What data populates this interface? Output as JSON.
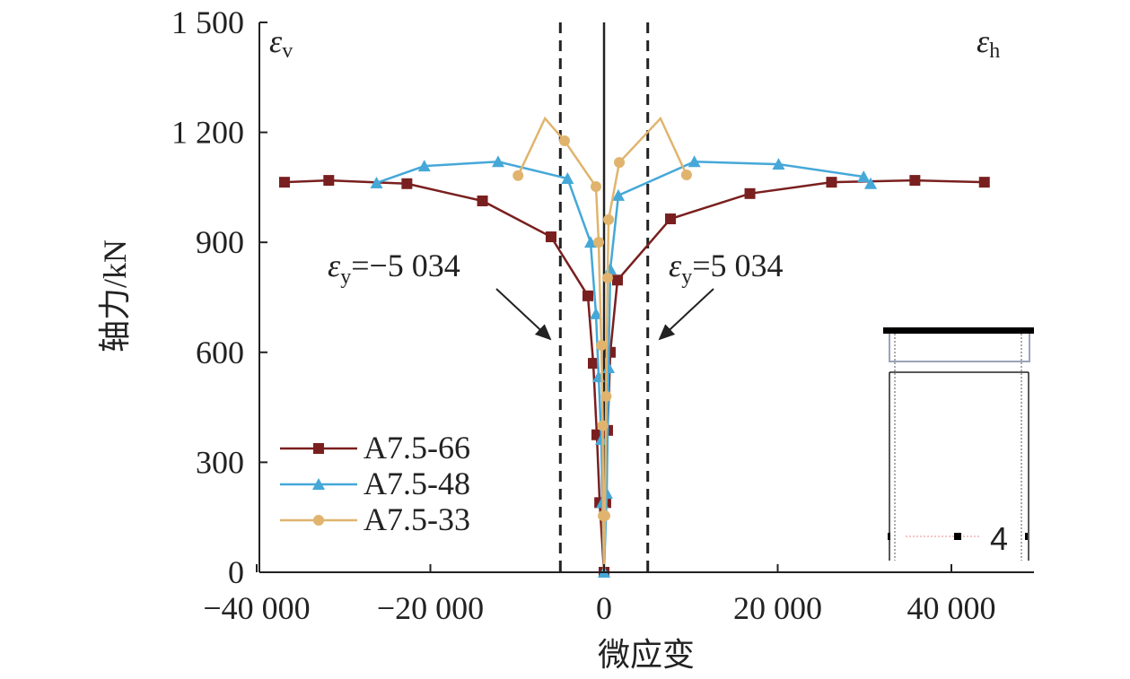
{
  "chart_data": {
    "type": "line",
    "xlabel": "微应变",
    "ylabel": "轴力/kN",
    "xlim": [
      -40000,
      50000
    ],
    "ylim": [
      0,
      1500
    ],
    "xticks": [
      {
        "v": -40000,
        "label": "−40 000"
      },
      {
        "v": -20000,
        "label": "−20 000"
      },
      {
        "v": 0,
        "label": "0"
      },
      {
        "v": 20000,
        "label": "20 000"
      },
      {
        "v": 40000,
        "label": "40 000"
      }
    ],
    "yticks": [
      {
        "v": 0,
        "label": "0"
      },
      {
        "v": 300,
        "label": "300"
      },
      {
        "v": 600,
        "label": "600"
      },
      {
        "v": 900,
        "label": "900"
      },
      {
        "v": 1200,
        "label": "1 200"
      },
      {
        "v": 1500,
        "label": "1 500"
      }
    ],
    "annotations": {
      "left_region": "ε",
      "left_sub": "v",
      "right_region": "ε",
      "right_sub": "h",
      "yield_neg_prefix": "ε",
      "yield_neg_sub": "y",
      "yield_neg_text": "=−5 034",
      "yield_pos_prefix": "ε",
      "yield_pos_sub": "y",
      "yield_pos_text": "=5 034",
      "yield_values": [
        -5034,
        5034
      ],
      "inset_label": "4"
    },
    "series": [
      {
        "name": "A7.5-66",
        "color": "#7a1f1f",
        "marker": "square",
        "points": [
          [
            -36800,
            1064
          ],
          [
            -31700,
            1069
          ],
          [
            -22700,
            1060
          ],
          [
            -14000,
            1013
          ],
          [
            -6100,
            915
          ],
          [
            -1860,
            754
          ],
          [
            -1240,
            570
          ],
          [
            -830,
            375
          ],
          [
            -500,
            190
          ],
          [
            0,
            0
          ],
          [
            200,
            190
          ],
          [
            410,
            387
          ],
          [
            720,
            600
          ],
          [
            1550,
            797
          ],
          [
            7650,
            964
          ],
          [
            16800,
            1033
          ],
          [
            26200,
            1064
          ],
          [
            35800,
            1069
          ],
          [
            43800,
            1064
          ]
        ]
      },
      {
        "name": "A7.5-48",
        "color": "#45a8d8",
        "marker": "triangle",
        "points": [
          [
            -26200,
            1062
          ],
          [
            -20700,
            1108
          ],
          [
            -12200,
            1120
          ],
          [
            -4200,
            1074
          ],
          [
            -1550,
            900
          ],
          [
            -930,
            705
          ],
          [
            -620,
            533
          ],
          [
            -310,
            362
          ],
          [
            -200,
            190
          ],
          [
            0,
            0
          ],
          [
            310,
            215
          ],
          [
            520,
            558
          ],
          [
            720,
            827
          ],
          [
            1650,
            1028
          ],
          [
            10400,
            1120
          ],
          [
            20100,
            1113
          ],
          [
            29900,
            1079
          ],
          [
            30700,
            1060
          ]
        ]
      },
      {
        "name": "A7.5-33",
        "color": "#e0b46e",
        "marker": "circle",
        "points": [
          [
            -9900,
            1082
          ],
          [
            -6800,
            1238
          ],
          [
            -4550,
            1177
          ],
          [
            -930,
            1052
          ],
          [
            -620,
            900
          ],
          [
            -310,
            619
          ],
          [
            -150,
            400
          ],
          [
            -100,
            154
          ],
          [
            0,
            0
          ],
          [
            100,
            154
          ],
          [
            250,
            480
          ],
          [
            410,
            803
          ],
          [
            520,
            962
          ],
          [
            1760,
            1118
          ],
          [
            6500,
            1238
          ],
          [
            9500,
            1084
          ]
        ],
        "no_marker": [
          1,
          8,
          14
        ]
      }
    ]
  }
}
